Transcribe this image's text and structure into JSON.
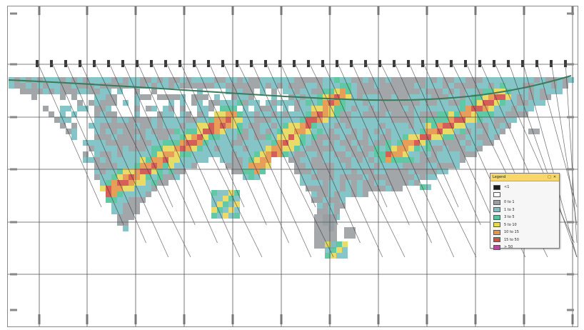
{
  "map": {
    "grid_color": "#555555",
    "cell_palette": {
      "grey": "#9a9ea2",
      "teal": "#7bbfc2",
      "green": "#52c39a",
      "yellow": "#e7d85a",
      "orange": "#e5964a",
      "red": "#d2504a",
      "magenta": "#b24aa0",
      "black": "#1a1a1a"
    }
  },
  "legend": {
    "title": "Legend",
    "close_glyph": "✕",
    "pin_glyph": "□",
    "items": [
      {
        "label": "<1",
        "color": "#1a1a1a"
      },
      {
        "label": "",
        "color": "#ffffff"
      },
      {
        "label": "0 to 1",
        "color": "#9a9ea2"
      },
      {
        "label": "1 to 3",
        "color": "#7bbfc2"
      },
      {
        "label": "3 to 5",
        "color": "#52c39a"
      },
      {
        "label": "5 to 10",
        "color": "#e7d85a"
      },
      {
        "label": "10 to 15",
        "color": "#e5964a"
      },
      {
        "label": "15 to 50",
        "color": "#d2504a"
      },
      {
        "label": "> 50",
        "color": "#b24aa0"
      }
    ]
  }
}
